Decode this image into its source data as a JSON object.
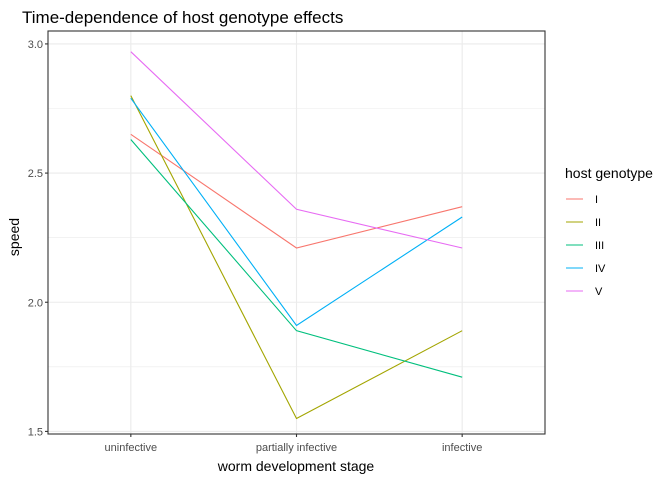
{
  "chart_data": {
    "type": "line",
    "title": "Time-dependence of host genotype effects",
    "xlabel": "worm development stage",
    "ylabel": "speed",
    "categories": [
      "uninfective",
      "partially infective",
      "infective"
    ],
    "ylim": [
      1.49,
      3.05
    ],
    "yticks": [
      1.5,
      2.0,
      2.5,
      3.0
    ],
    "ytick_labels": [
      "1.5",
      "2.0",
      "2.5",
      "3.0"
    ],
    "grid": true,
    "legend": {
      "title": "host genotype",
      "position": "right"
    },
    "series": [
      {
        "name": "I",
        "color": "#F8766D",
        "values": [
          2.65,
          2.21,
          2.37
        ]
      },
      {
        "name": "II",
        "color": "#A3A500",
        "values": [
          2.8,
          1.55,
          1.89
        ]
      },
      {
        "name": "III",
        "color": "#00BF7D",
        "values": [
          2.63,
          1.89,
          1.71
        ]
      },
      {
        "name": "IV",
        "color": "#00B0F6",
        "values": [
          2.79,
          1.91,
          2.33
        ]
      },
      {
        "name": "V",
        "color": "#E76BF3",
        "values": [
          2.97,
          2.36,
          2.21
        ]
      }
    ]
  }
}
